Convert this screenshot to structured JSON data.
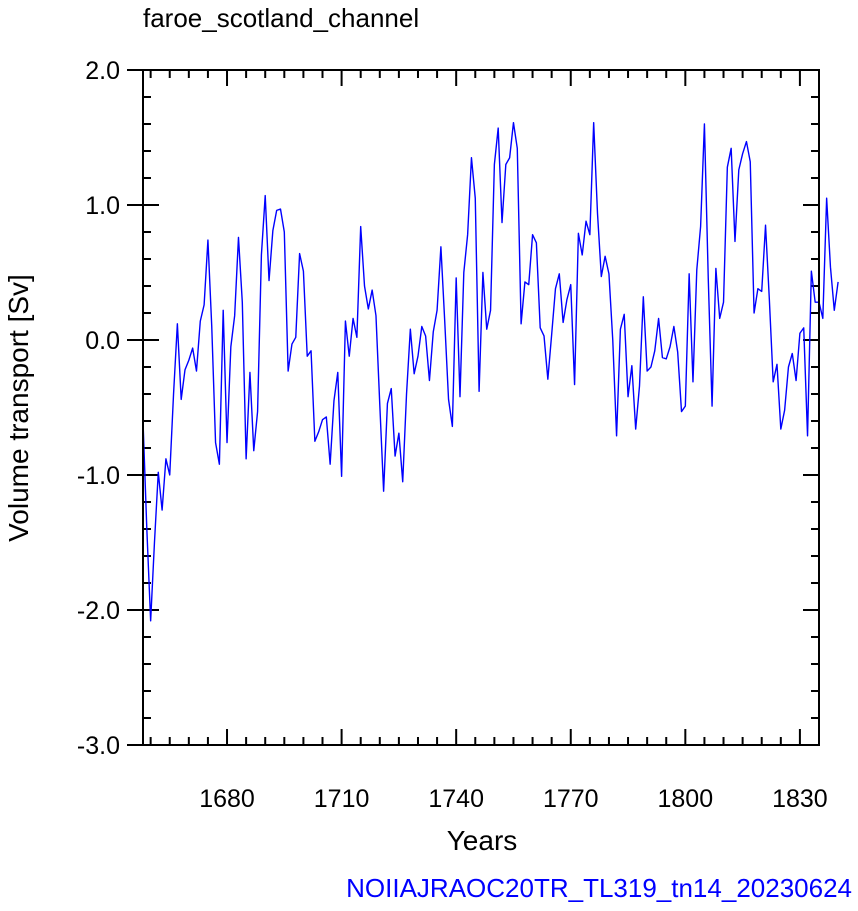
{
  "chart_data": {
    "type": "line",
    "title": "faroe_scotland_channel",
    "xlabel": "Years",
    "ylabel": "Volume transport [Sv]",
    "source_label": "NOIIAJRAOC20TR_TL319_tn14_20230624",
    "xlim": [
      1658,
      1835
    ],
    "ylim": [
      -3.0,
      2.0
    ],
    "x_ticks": [
      1680,
      1710,
      1740,
      1770,
      1800,
      1830
    ],
    "x_tick_labels": [
      "1680",
      "1710",
      "1740",
      "1770",
      "1800",
      "1830"
    ],
    "y_ticks": [
      2.0,
      1.0,
      0.0,
      -1.0,
      -2.0,
      -3.0
    ],
    "y_tick_labels": [
      "2.0",
      "1.0",
      "0.0",
      "-1.0",
      "-2.0",
      "-3.0"
    ],
    "x_minor_step": 5,
    "y_minor_step": 0.2,
    "grid": false,
    "line_color": "#0000ff",
    "series": [
      {
        "x_start": 1658,
        "x_step": 1,
        "values": [
          -0.6,
          -1.4,
          -2.08,
          -1.5,
          -0.98,
          -1.26,
          -0.88,
          -1.0,
          -0.4,
          0.12,
          -0.44,
          -0.22,
          -0.15,
          -0.06,
          -0.23,
          0.14,
          0.26,
          0.74,
          0.1,
          -0.76,
          -0.92,
          0.22,
          -0.76,
          -0.05,
          0.18,
          0.76,
          0.28,
          -0.88,
          -0.24,
          -0.82,
          -0.53,
          0.63,
          1.07,
          0.44,
          0.81,
          0.96,
          0.97,
          0.8,
          -0.23,
          -0.03,
          0.02,
          0.64,
          0.51,
          -0.12,
          -0.08,
          -0.75,
          -0.68,
          -0.59,
          -0.57,
          -0.92,
          -0.45,
          -0.24,
          -1.01,
          0.14,
          -0.12,
          0.16,
          0.02,
          0.84,
          0.4,
          0.23,
          0.37,
          0.18,
          -0.48,
          -1.12,
          -0.47,
          -0.36,
          -0.86,
          -0.69,
          -1.05,
          -0.4,
          0.08,
          -0.25,
          -0.12,
          0.1,
          0.03,
          -0.3,
          0.06,
          0.22,
          0.69,
          0.14,
          -0.44,
          -0.64,
          0.46,
          -0.42,
          0.5,
          0.78,
          1.35,
          1.05,
          -0.38,
          0.5,
          0.08,
          0.22,
          1.3,
          1.57,
          0.87,
          1.3,
          1.35,
          1.61,
          1.42,
          0.12,
          0.43,
          0.41,
          0.78,
          0.72,
          0.09,
          0.03,
          -0.29,
          0.04,
          0.38,
          0.49,
          0.13,
          0.3,
          0.41,
          -0.33,
          0.79,
          0.63,
          0.88,
          0.78,
          1.61,
          0.94,
          0.47,
          0.62,
          0.49,
          0.0,
          -0.71,
          0.08,
          0.19,
          -0.42,
          -0.19,
          -0.66,
          -0.34,
          0.32,
          -0.23,
          -0.2,
          -0.08,
          0.16,
          -0.13,
          -0.14,
          -0.05,
          0.1,
          -0.09,
          -0.53,
          -0.49,
          0.49,
          -0.31,
          0.52,
          0.84,
          1.6,
          0.46,
          -0.49,
          0.53,
          0.16,
          0.28,
          1.28,
          1.42,
          0.73,
          1.26,
          1.38,
          1.47,
          1.32,
          0.2,
          0.38,
          0.36,
          0.85,
          0.3,
          -0.31,
          -0.18,
          -0.66,
          -0.52,
          -0.2,
          -0.1,
          -0.3,
          0.05,
          0.09,
          -0.71,
          0.51,
          0.28,
          0.28,
          0.16,
          1.05,
          0.54,
          0.22,
          0.43
        ]
      }
    ]
  }
}
